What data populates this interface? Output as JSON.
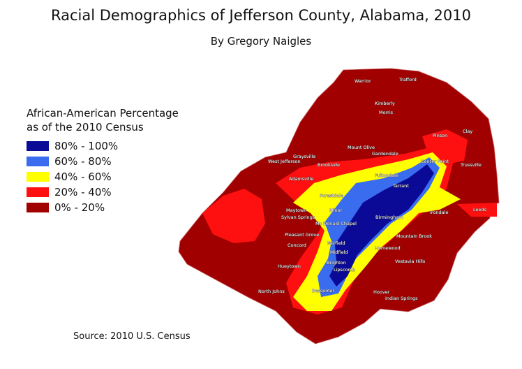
{
  "title": "Racial Demographics of Jefferson County, Alabama, 2010",
  "subtitle": "By Gregory Naigles",
  "legend": {
    "title": [
      "African-American Percentage",
      "as of the 2010 Census"
    ],
    "items": [
      {
        "label": "80% - 100%",
        "color": "#0a0a96"
      },
      {
        "label": "60% - 80%",
        "color": "#3a6cf0"
      },
      {
        "label": "40% - 60%",
        "color": "#ffff00"
      },
      {
        "label": "20% - 40%",
        "color": "#ff1010"
      },
      {
        "label": "0% - 20%",
        "color": "#a00000"
      }
    ]
  },
  "source": "Source: 2010 U.S. Census",
  "places": [
    "Warrior",
    "Trafford",
    "Kimberly",
    "Morris",
    "Mount Olive",
    "Gardendale",
    "Brookside",
    "Graysville",
    "West Jefferson",
    "Adamsville",
    "Forestdale",
    "Fultondale",
    "Tarrant",
    "Center Point",
    "Pinson",
    "Clay",
    "Trussville",
    "Minor",
    "Birmingham",
    "Irondale",
    "Leeds",
    "Maytown",
    "Sylvan Springs",
    "Mc Donald Chapel",
    "Pleasant Grove",
    "Concord",
    "Fairfield",
    "Midfield",
    "Brighton",
    "Lipscomb",
    "Homewood",
    "Mountain Brook",
    "Vestavia Hills",
    "Hueytown",
    "Bessemer",
    "Hoover",
    "Indian Springs",
    "North Johns"
  ]
}
